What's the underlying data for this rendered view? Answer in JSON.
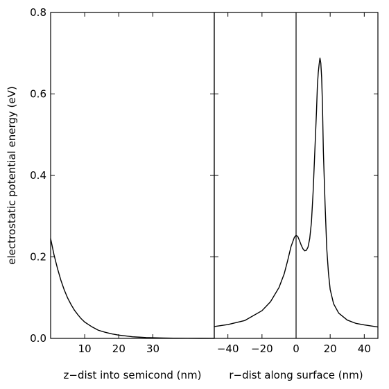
{
  "chart_data": [
    {
      "type": "line",
      "title": "",
      "xlabel": "z−dist into semicond (nm)",
      "ylabel": "electrostatic potential energy (eV)",
      "xlim": [
        0,
        48
      ],
      "ylim": [
        0,
        0.8
      ],
      "x_ticks": [
        10,
        20,
        30
      ],
      "x_tick_labels": [
        "10",
        "20",
        "30"
      ],
      "y_ticks": [
        0.0,
        0.2,
        0.4,
        0.6,
        0.8
      ],
      "y_tick_labels": [
        "0.0",
        "0.2",
        "0.4",
        "0.6",
        "0.8"
      ],
      "grid": false,
      "series": [
        {
          "x": [
            0,
            1,
            2,
            3,
            4,
            5,
            6,
            7,
            8,
            9,
            10,
            12,
            14,
            16,
            18,
            20,
            22,
            24,
            26,
            28,
            30,
            33,
            36,
            40,
            44,
            48
          ],
          "y": [
            0.245,
            0.205,
            0.172,
            0.143,
            0.119,
            0.099,
            0.083,
            0.069,
            0.058,
            0.048,
            0.04,
            0.029,
            0.02,
            0.015,
            0.011,
            0.008,
            0.006,
            0.004,
            0.003,
            0.002,
            0.0015,
            0.001,
            0.0006,
            0.0003,
            0.0002,
            0.0001
          ]
        }
      ]
    },
    {
      "type": "line",
      "title": "",
      "xlabel": "r−dist along surface (nm)",
      "ylabel": "",
      "xlim": [
        -48,
        48
      ],
      "ylim": [
        0,
        0.8
      ],
      "x_ticks": [
        -40,
        -20,
        0,
        20,
        40
      ],
      "x_tick_labels": [
        "−40",
        "−20",
        "0",
        "20",
        "40"
      ],
      "vline_x": 0,
      "grid": false,
      "series": [
        {
          "x": [
            -48,
            -40,
            -30,
            -20,
            -15,
            -10,
            -7,
            -5,
            -3,
            -1,
            0,
            1,
            2,
            3,
            4,
            5,
            6,
            7,
            8,
            9,
            10,
            11,
            12,
            12.5,
            13,
            13.5,
            14,
            14.5,
            15,
            15.5,
            16,
            17,
            18,
            19,
            20,
            22,
            25,
            30,
            35,
            40,
            48
          ],
          "y": [
            0.029,
            0.034,
            0.044,
            0.068,
            0.09,
            0.125,
            0.158,
            0.19,
            0.225,
            0.248,
            0.253,
            0.25,
            0.24,
            0.229,
            0.22,
            0.215,
            0.216,
            0.224,
            0.245,
            0.285,
            0.36,
            0.46,
            0.56,
            0.62,
            0.652,
            0.672,
            0.688,
            0.676,
            0.64,
            0.57,
            0.46,
            0.33,
            0.22,
            0.16,
            0.12,
            0.085,
            0.062,
            0.045,
            0.037,
            0.033,
            0.028
          ]
        }
      ]
    }
  ]
}
